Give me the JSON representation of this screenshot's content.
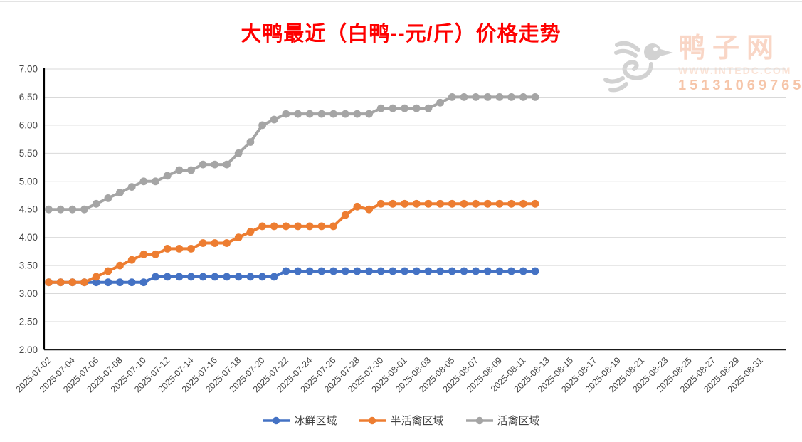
{
  "page": {
    "title": "大鸭最近（白鸭--元/斤）价格走势",
    "title_color": "#FF0000"
  },
  "watermark": {
    "site_name": "鸭子网",
    "website": "WWW.INTEDC.COM",
    "phone": "15131069765"
  },
  "chart_data": {
    "type": "line",
    "title": "大鸭最近（白鸭--元/斤）价格走势",
    "xlabel": "",
    "ylabel": "",
    "ylim": [
      2.0,
      7.0
    ],
    "y_tick_labels": [
      "7.00",
      "6.50",
      "6.00",
      "5.50",
      "5.00",
      "4.50",
      "4.00",
      "3.50",
      "3.00",
      "2.50",
      "2.00"
    ],
    "grid": true,
    "legend_position": "bottom",
    "x_axis_tick_labels": [
      "2025-07-02",
      "2025-07-04",
      "2025-07-06",
      "2025-07-08",
      "2025-07-10",
      "2025-07-12",
      "2025-07-14",
      "2025-07-16",
      "2025-07-18",
      "2025-07-20",
      "2025-07-22",
      "2025-07-24",
      "2025-07-26",
      "2025-07-28",
      "2025-07-30",
      "2025-08-01",
      "2025-08-03",
      "2025-08-05",
      "2025-08-07",
      "2025-08-09",
      "2025-08-11",
      "2025-08-13",
      "2025-08-15",
      "2025-08-17",
      "2025-08-19",
      "2025-08-21",
      "2025-08-23",
      "2025-08-25",
      "2025-08-27",
      "2025-08-29",
      "2025-08-31"
    ],
    "x": [
      "2025-07-02",
      "2025-07-03",
      "2025-07-04",
      "2025-07-05",
      "2025-07-06",
      "2025-07-07",
      "2025-07-08",
      "2025-07-09",
      "2025-07-10",
      "2025-07-11",
      "2025-07-12",
      "2025-07-13",
      "2025-07-14",
      "2025-07-15",
      "2025-07-16",
      "2025-07-17",
      "2025-07-18",
      "2025-07-19",
      "2025-07-20",
      "2025-07-21",
      "2025-07-22",
      "2025-07-23",
      "2025-07-24",
      "2025-07-25",
      "2025-07-26",
      "2025-07-27",
      "2025-07-28",
      "2025-07-29",
      "2025-07-30",
      "2025-07-31",
      "2025-08-01",
      "2025-08-02",
      "2025-08-03",
      "2025-08-04",
      "2025-08-05",
      "2025-08-06",
      "2025-08-07",
      "2025-08-08",
      "2025-08-09",
      "2025-08-10",
      "2025-08-11",
      "2025-08-12"
    ],
    "series": [
      {
        "name": "冰鲜区域",
        "color": "#4472C4",
        "values": [
          3.2,
          3.2,
          3.2,
          3.2,
          3.2,
          3.2,
          3.2,
          3.2,
          3.2,
          3.3,
          3.3,
          3.3,
          3.3,
          3.3,
          3.3,
          3.3,
          3.3,
          3.3,
          3.3,
          3.3,
          3.4,
          3.4,
          3.4,
          3.4,
          3.4,
          3.4,
          3.4,
          3.4,
          3.4,
          3.4,
          3.4,
          3.4,
          3.4,
          3.4,
          3.4,
          3.4,
          3.4,
          3.4,
          3.4,
          3.4,
          3.4,
          3.4
        ]
      },
      {
        "name": "半活禽区域",
        "color": "#ED7D31",
        "values": [
          3.2,
          3.2,
          3.2,
          3.2,
          3.3,
          3.4,
          3.5,
          3.6,
          3.7,
          3.7,
          3.8,
          3.8,
          3.8,
          3.9,
          3.9,
          3.9,
          4.0,
          4.1,
          4.2,
          4.2,
          4.2,
          4.2,
          4.2,
          4.2,
          4.2,
          4.4,
          4.55,
          4.5,
          4.6,
          4.6,
          4.6,
          4.6,
          4.6,
          4.6,
          4.6,
          4.6,
          4.6,
          4.6,
          4.6,
          4.6,
          4.6,
          4.6
        ]
      },
      {
        "name": "活禽区域",
        "color": "#A5A5A5",
        "values": [
          4.5,
          4.5,
          4.5,
          4.5,
          4.6,
          4.7,
          4.8,
          4.9,
          5.0,
          5.0,
          5.1,
          5.2,
          5.2,
          5.3,
          5.3,
          5.3,
          5.5,
          5.7,
          6.0,
          6.1,
          6.2,
          6.2,
          6.2,
          6.2,
          6.2,
          6.2,
          6.2,
          6.2,
          6.3,
          6.3,
          6.3,
          6.3,
          6.3,
          6.4,
          6.5,
          6.5,
          6.5,
          6.5,
          6.5,
          6.5,
          6.5,
          6.5
        ]
      }
    ]
  }
}
